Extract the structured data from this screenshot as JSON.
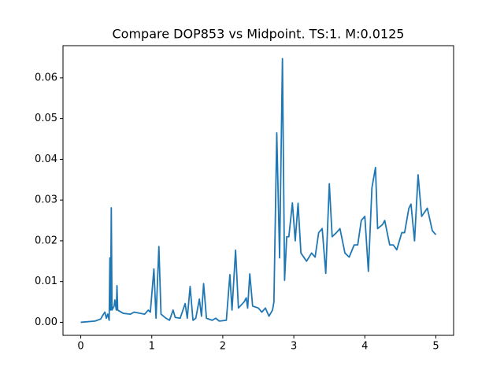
{
  "chart_data": {
    "type": "line",
    "title": "Compare DOP853 vs Midpoint. TS:1. M:0.0125",
    "x": [
      0,
      0.2,
      0.28,
      0.32,
      0.34,
      0.36,
      0.38,
      0.4,
      0.41,
      0.42,
      0.43,
      0.44,
      0.47,
      0.48,
      0.5,
      0.51,
      0.52,
      0.6,
      0.7,
      0.75,
      0.9,
      0.95,
      0.98,
      1.03,
      1.06,
      1.1,
      1.13,
      1.2,
      1.25,
      1.3,
      1.33,
      1.4,
      1.47,
      1.5,
      1.54,
      1.58,
      1.62,
      1.67,
      1.7,
      1.73,
      1.77,
      1.85,
      1.9,
      1.95,
      2.05,
      2.1,
      2.13,
      2.18,
      2.22,
      2.3,
      2.33,
      2.35,
      2.38,
      2.42,
      2.5,
      2.55,
      2.6,
      2.65,
      2.7,
      2.72,
      2.76,
      2.8,
      2.84,
      2.87,
      2.9,
      2.93,
      2.98,
      3.02,
      3.06,
      3.1,
      3.18,
      3.25,
      3.3,
      3.35,
      3.4,
      3.45,
      3.5,
      3.54,
      3.6,
      3.65,
      3.72,
      3.78,
      3.85,
      3.9,
      3.95,
      4.0,
      4.05,
      4.1,
      4.15,
      4.18,
      4.25,
      4.28,
      4.35,
      4.4,
      4.45,
      4.52,
      4.56,
      4.62,
      4.65,
      4.7,
      4.75,
      4.8,
      4.88,
      4.95,
      5.0
    ],
    "series": [
      {
        "color": "#1f77b4",
        "values": [
          0,
          0.0003,
          0.0008,
          0.002,
          0.0025,
          0.001,
          0.002,
          0.0005,
          0.0158,
          0.003,
          0.0281,
          0.003,
          0.004,
          0.0055,
          0.003,
          0.009,
          0.003,
          0.0022,
          0.002,
          0.0025,
          0.002,
          0.003,
          0.0025,
          0.0131,
          0.001,
          0.0186,
          0.002,
          0.001,
          0.0005,
          0.003,
          0.0012,
          0.001,
          0.0046,
          0.001,
          0.0088,
          0.0005,
          0.001,
          0.0057,
          0.0015,
          0.0095,
          0.001,
          0.0005,
          0.001,
          0.0003,
          0.0005,
          0.0117,
          0.003,
          0.0177,
          0.0035,
          0.005,
          0.006,
          0.0035,
          0.0119,
          0.004,
          0.0035,
          0.0025,
          0.0035,
          0.0015,
          0.003,
          0.005,
          0.0465,
          0.0158,
          0.0647,
          0.0103,
          0.021,
          0.021,
          0.0293,
          0.02,
          0.0292,
          0.017,
          0.015,
          0.017,
          0.016,
          0.022,
          0.023,
          0.012,
          0.034,
          0.021,
          0.022,
          0.023,
          0.017,
          0.016,
          0.019,
          0.019,
          0.025,
          0.026,
          0.0125,
          0.033,
          0.038,
          0.023,
          0.024,
          0.025,
          0.019,
          0.019,
          0.0178,
          0.022,
          0.022,
          0.028,
          0.029,
          0.02,
          0.0362,
          0.026,
          0.028,
          0.0225,
          0.0215
        ]
      }
    ],
    "xlim": [
      -0.25,
      5.25
    ],
    "xticks": [
      0,
      1,
      2,
      3,
      4,
      5
    ],
    "ylim": [
      -0.0032,
      0.0679
    ],
    "yticks": [
      {
        "value": 0,
        "label": "0.00"
      },
      {
        "value": 0.01,
        "label": "0.01"
      },
      {
        "value": 0.02,
        "label": "0.02"
      },
      {
        "value": 0.03,
        "label": "0.03"
      },
      {
        "value": 0.04,
        "label": "0.04"
      },
      {
        "value": 0.05,
        "label": "0.05"
      },
      {
        "value": 0.06,
        "label": "0.06"
      }
    ]
  }
}
